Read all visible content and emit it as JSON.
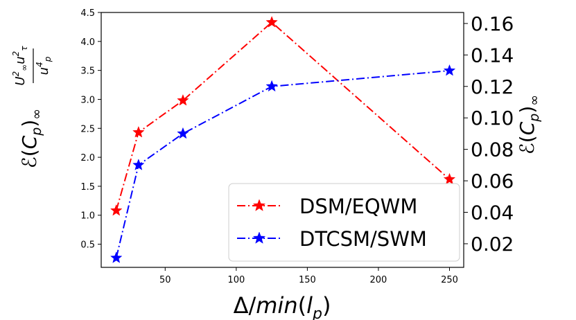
{
  "chart_data": {
    "type": "line",
    "x": [
      15.6,
      31.25,
      62.5,
      125,
      250
    ],
    "xticks": [
      "50",
      "100",
      "150",
      "200",
      "250"
    ],
    "xlabel": "Δ/min(l_p)",
    "xlim": [
      5,
      260
    ],
    "ylabel_left": "ℰ(C_p)∞ (U∞² u_τ²)/u_p⁴",
    "ylim_left": [
      0.1,
      4.5
    ],
    "yticks_left": [
      "0.5",
      "1.0",
      "1.5",
      "2.0",
      "2.5",
      "3.0",
      "3.5",
      "4.0",
      "4.5"
    ],
    "ylabel_right": "ℰ(C_p)∞",
    "ylim_right": [
      0.005,
      0.167
    ],
    "yticks_right": [
      "0.02",
      "0.04",
      "0.06",
      "0.08",
      "0.10",
      "0.12",
      "0.14",
      "0.16"
    ],
    "series": [
      {
        "name": "DSM/EQWM",
        "axis": "left",
        "color": "#ff0000",
        "values": [
          1.08,
          2.43,
          2.98,
          4.33,
          1.62
        ]
      },
      {
        "name": "DTCSM/SWM",
        "axis": "right",
        "color": "#0000ff",
        "values": [
          0.011,
          0.07,
          0.09,
          0.12,
          0.13
        ]
      }
    ],
    "legend_position": "lower-right",
    "grid": false
  }
}
